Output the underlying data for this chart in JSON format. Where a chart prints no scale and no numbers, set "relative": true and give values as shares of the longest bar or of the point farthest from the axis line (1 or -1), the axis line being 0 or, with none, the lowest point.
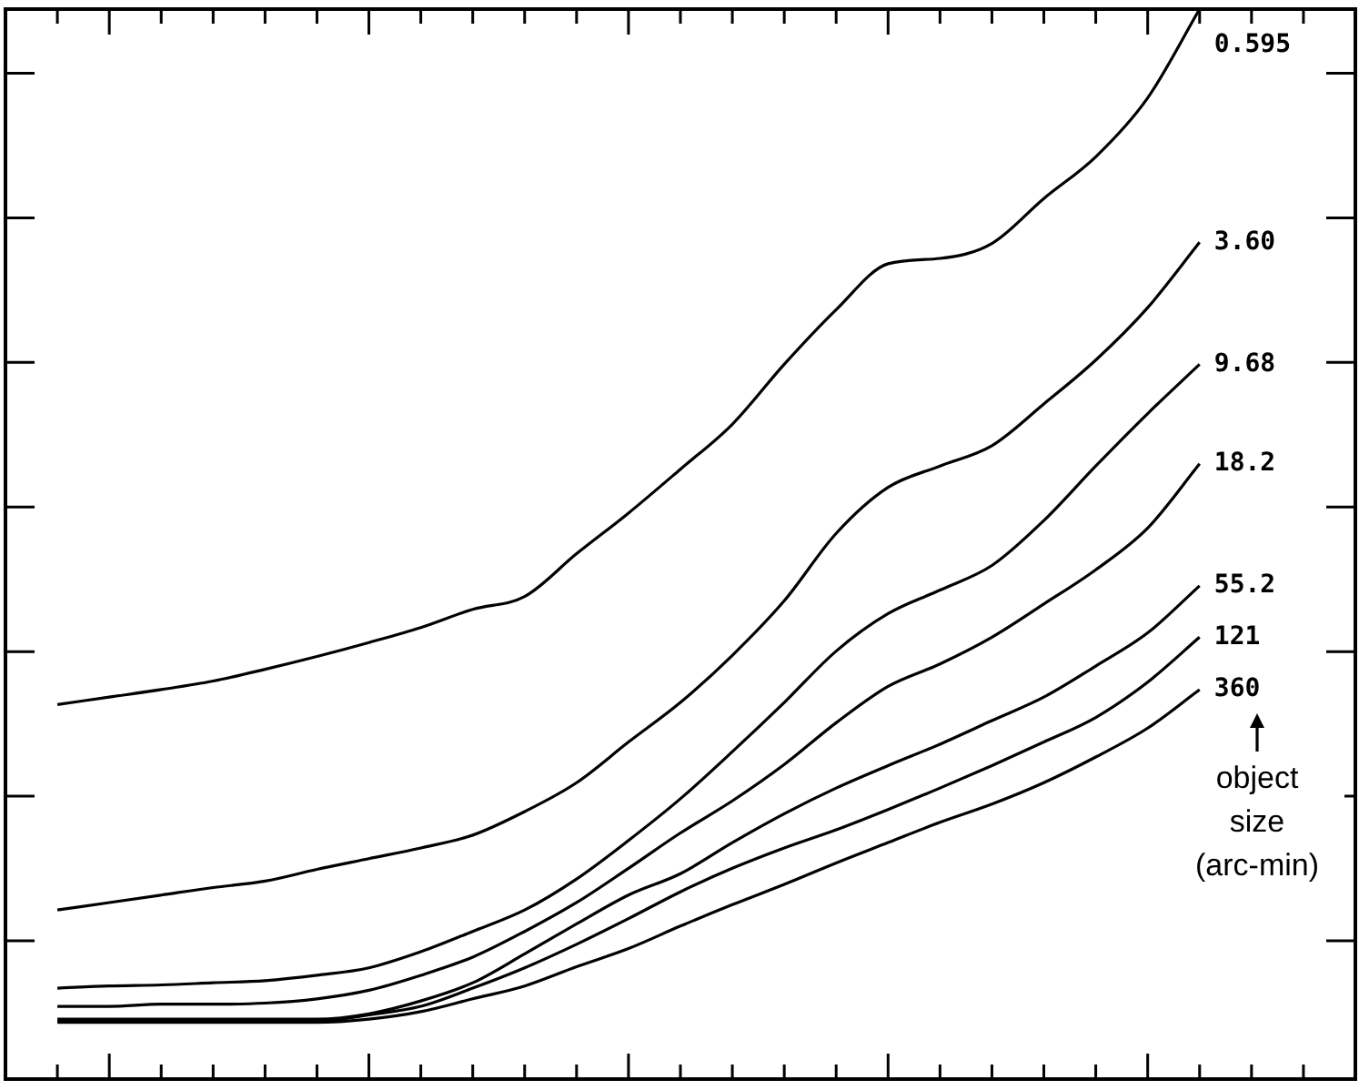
{
  "chart_data": {
    "type": "line",
    "relative": true,
    "legend": "right",
    "marker": "none",
    "line_style": "solid",
    "categories": [
      null,
      null,
      null,
      null,
      null,
      null,
      null,
      null,
      null,
      null,
      null,
      null,
      null,
      null,
      null,
      null,
      null,
      null,
      null,
      null,
      null,
      null,
      null,
      null,
      null,
      null,
      null
    ],
    "series": [
      {
        "name": "0.595",
        "color": "#000000",
        "values": [
          null,
          0.35,
          0.357,
          0.364,
          0.372,
          0.383,
          0.395,
          0.408,
          0.422,
          0.439,
          0.451,
          0.491,
          0.529,
          0.57,
          0.612,
          0.668,
          0.719,
          0.762,
          0.767,
          0.781,
          0.823,
          0.862,
          0.917,
          1.0,
          null,
          null,
          null
        ]
      },
      {
        "name": "3.60",
        "color": "#000000",
        "values": [
          null,
          0.158,
          0.165,
          0.172,
          0.179,
          0.185,
          0.196,
          0.206,
          0.216,
          0.228,
          0.25,
          0.277,
          0.315,
          0.352,
          0.396,
          0.447,
          0.51,
          0.553,
          0.573,
          0.592,
          0.631,
          0.672,
          0.721,
          0.782,
          null,
          null,
          null
        ]
      },
      {
        "name": "9.68",
        "color": "#000000",
        "values": [
          null,
          0.085,
          0.087,
          0.088,
          0.09,
          0.092,
          0.097,
          0.104,
          0.119,
          0.138,
          0.158,
          0.187,
          0.223,
          0.262,
          0.306,
          0.352,
          0.4,
          0.435,
          0.457,
          0.48,
          0.522,
          0.573,
          0.622,
          0.668,
          null,
          null,
          null
        ]
      },
      {
        "name": "18.2",
        "color": "#000000",
        "values": [
          null,
          0.068,
          0.068,
          0.07,
          0.07,
          0.071,
          0.075,
          0.083,
          0.097,
          0.114,
          0.138,
          0.165,
          0.197,
          0.23,
          0.26,
          0.294,
          0.333,
          0.367,
          0.388,
          0.413,
          0.444,
          0.476,
          0.515,
          0.575,
          null,
          null,
          null
        ]
      },
      {
        "name": "55.2",
        "color": "#000000",
        "values": [
          null,
          0.056,
          0.056,
          0.056,
          0.056,
          0.056,
          0.056,
          0.061,
          0.073,
          0.09,
          0.117,
          0.145,
          0.172,
          0.192,
          0.221,
          0.248,
          0.272,
          0.293,
          0.313,
          0.335,
          0.357,
          0.386,
          0.417,
          0.461,
          null,
          null,
          null
        ]
      },
      {
        "name": "121",
        "color": "#000000",
        "values": [
          null,
          0.054,
          0.054,
          0.054,
          0.054,
          0.054,
          0.054,
          0.06,
          0.068,
          0.085,
          0.104,
          0.126,
          0.15,
          0.175,
          0.197,
          0.216,
          0.233,
          0.252,
          0.272,
          0.293,
          0.315,
          0.338,
          0.371,
          0.413,
          null,
          null,
          null
        ]
      },
      {
        "name": "360",
        "color": "#000000",
        "values": [
          null,
          0.053,
          0.053,
          0.053,
          0.053,
          0.053,
          0.053,
          0.056,
          0.063,
          0.075,
          0.087,
          0.105,
          0.122,
          0.143,
          0.163,
          0.182,
          0.202,
          0.221,
          0.24,
          0.257,
          0.277,
          0.301,
          0.328,
          0.364,
          null,
          null,
          null
        ]
      }
    ],
    "annotations": [
      "object size (arc-min)"
    ]
  }
}
